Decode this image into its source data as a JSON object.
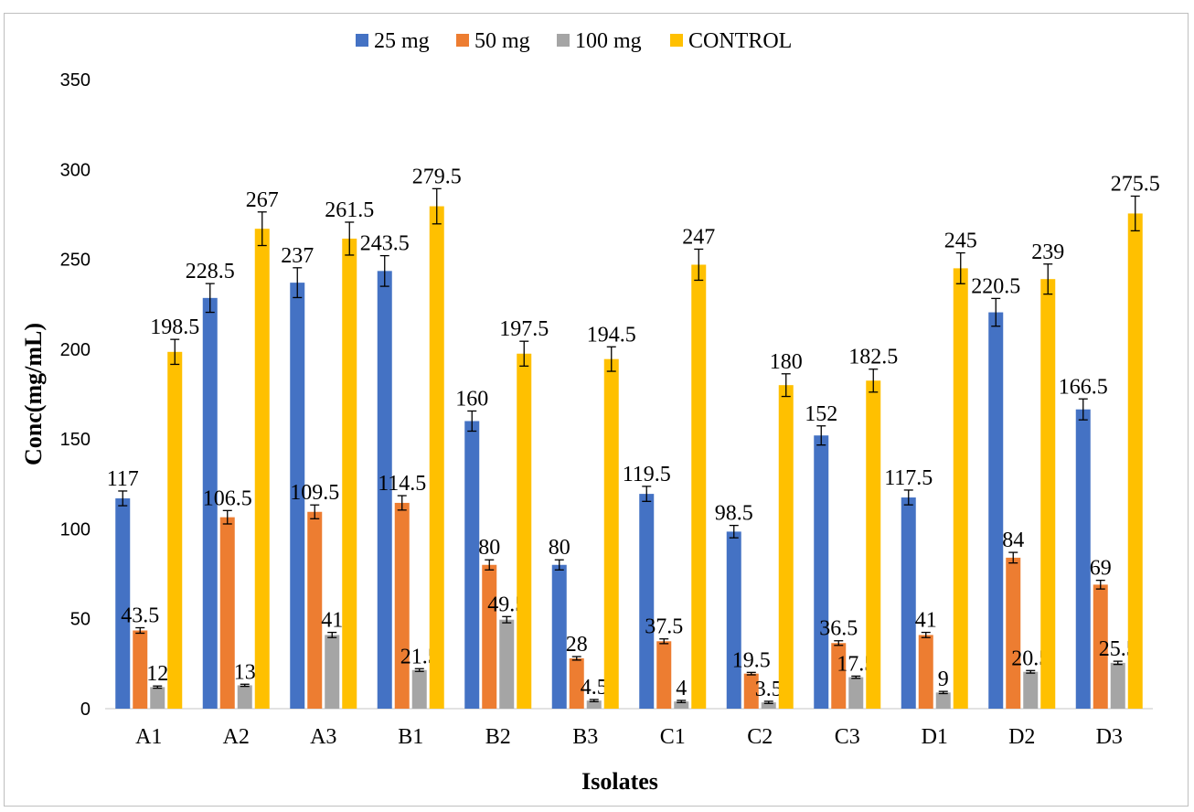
{
  "chart_data": {
    "type": "bar",
    "title": "",
    "xlabel": "Isolates",
    "ylabel": "Conc(mg/mL)",
    "ylim": [
      0,
      350
    ],
    "yticks": [
      "0",
      "50",
      "100",
      "150",
      "200",
      "250",
      "300",
      "350"
    ],
    "grid": false,
    "legend_position": "top",
    "categories": [
      "A1",
      "A2",
      "A3",
      "B1",
      "B2",
      "B3",
      "C1",
      "C2",
      "C3",
      "D1",
      "D2",
      "D3"
    ],
    "series": [
      {
        "name": "25 mg",
        "color": "#4472C4",
        "values": [
          117,
          228.5,
          237,
          243.5,
          160,
          80,
          119.5,
          98.5,
          152,
          117.5,
          220.5,
          166.5
        ],
        "labels": [
          "117",
          "228.5",
          "237",
          "243.5",
          "160",
          "80",
          "119.5",
          "98.5",
          "152",
          "117.5",
          "220.5",
          "166.5"
        ]
      },
      {
        "name": "50 mg",
        "color": "#ED7D31",
        "values": [
          43.5,
          106.5,
          109.5,
          114.5,
          80,
          28,
          37.5,
          19.5,
          36.5,
          41,
          84,
          69
        ],
        "labels": [
          "43.5",
          "106.5",
          "109.5",
          "114.5",
          "80",
          "28",
          "37.5",
          "19.5",
          "36.5",
          "41",
          "84",
          "69"
        ]
      },
      {
        "name": "100 mg",
        "color": "#A5A5A5",
        "values": [
          12,
          13,
          41,
          21.5,
          49.5,
          4.5,
          4,
          3.5,
          17.5,
          9,
          20.5,
          25.5
        ],
        "labels": [
          "12",
          "13",
          "41",
          "21.5",
          "49.5",
          "4.5",
          "4",
          "3.5",
          "17.5",
          "9",
          "20.5",
          "25.5"
        ]
      },
      {
        "name": "CONTROL",
        "color": "#FFC000",
        "values": [
          198.5,
          267,
          261.5,
          279.5,
          197.5,
          194.5,
          247,
          180,
          182.5,
          245,
          239,
          275.5
        ],
        "labels": [
          "198.5",
          "267",
          "261.5",
          "279.5",
          "197.5",
          "194.5",
          "247",
          "180",
          "182.5",
          "245",
          "239",
          "275.5"
        ]
      }
    ]
  }
}
